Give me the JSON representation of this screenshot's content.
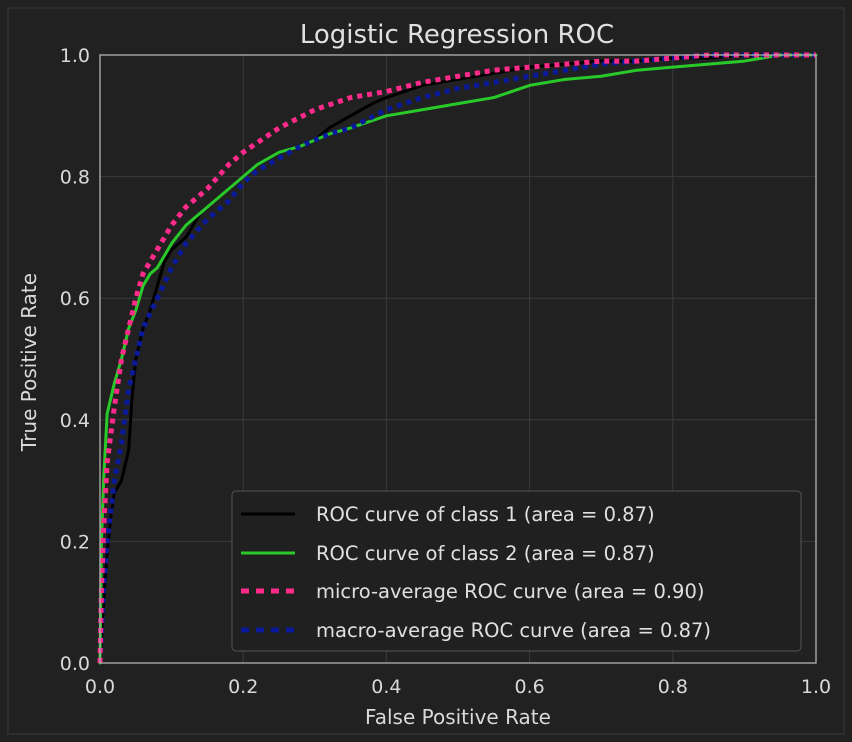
{
  "chart_data": {
    "type": "line",
    "title": "Logistic Regression ROC",
    "xlabel": "False Positive Rate",
    "ylabel": "True Positive Rate",
    "xlim": [
      0.0,
      1.0
    ],
    "ylim": [
      0.0,
      1.0
    ],
    "xticks": [
      "0.0",
      "0.2",
      "0.4",
      "0.6",
      "0.8",
      "1.0"
    ],
    "yticks": [
      "0.0",
      "0.2",
      "0.4",
      "0.6",
      "0.8",
      "1.0"
    ],
    "grid": true,
    "legend_position": "lower-right",
    "colors": {
      "background": "#212121",
      "axes_face": "#212121",
      "grid": "#3a3a3a",
      "spine": "#a8a8a8",
      "text": "#d9d9d9"
    },
    "series": [
      {
        "name": "ROC curve of class 1 (area = 0.87)",
        "color": "#000000",
        "dash": "solid",
        "x": [
          0,
          0.005,
          0.01,
          0.015,
          0.02,
          0.03,
          0.04,
          0.045,
          0.05,
          0.06,
          0.07,
          0.08,
          0.09,
          0.1,
          0.12,
          0.14,
          0.16,
          0.18,
          0.2,
          0.22,
          0.25,
          0.28,
          0.3,
          0.32,
          0.35,
          0.38,
          0.4,
          0.45,
          0.5,
          0.55,
          0.6,
          0.65,
          0.7,
          0.75,
          0.8,
          0.85,
          0.9,
          0.95,
          1.0
        ],
        "y": [
          0,
          0.1,
          0.18,
          0.24,
          0.28,
          0.3,
          0.35,
          0.44,
          0.5,
          0.55,
          0.58,
          0.62,
          0.66,
          0.68,
          0.7,
          0.74,
          0.76,
          0.78,
          0.8,
          0.82,
          0.84,
          0.85,
          0.86,
          0.88,
          0.9,
          0.92,
          0.93,
          0.95,
          0.96,
          0.97,
          0.98,
          0.985,
          0.99,
          0.99,
          0.995,
          0.995,
          1.0,
          1.0,
          1.0
        ]
      },
      {
        "name": "ROC curve of class 2 (area = 0.87)",
        "color": "#2ac92a",
        "dash": "solid",
        "x": [
          0,
          0.002,
          0.005,
          0.01,
          0.02,
          0.03,
          0.04,
          0.05,
          0.06,
          0.07,
          0.08,
          0.1,
          0.12,
          0.15,
          0.18,
          0.2,
          0.22,
          0.25,
          0.28,
          0.3,
          0.32,
          0.35,
          0.4,
          0.45,
          0.5,
          0.55,
          0.6,
          0.65,
          0.7,
          0.75,
          0.8,
          0.85,
          0.9,
          0.95,
          1.0
        ],
        "y": [
          0,
          0.2,
          0.3,
          0.41,
          0.46,
          0.5,
          0.55,
          0.58,
          0.62,
          0.64,
          0.65,
          0.69,
          0.72,
          0.75,
          0.78,
          0.8,
          0.82,
          0.84,
          0.85,
          0.86,
          0.87,
          0.88,
          0.9,
          0.91,
          0.92,
          0.93,
          0.95,
          0.96,
          0.965,
          0.975,
          0.98,
          0.985,
          0.99,
          1.0,
          1.0
        ]
      },
      {
        "name": "micro-average ROC curve (area = 0.90)",
        "color": "#ff2a8a",
        "dash": "dotted",
        "x": [
          0,
          0.002,
          0.005,
          0.01,
          0.02,
          0.03,
          0.04,
          0.05,
          0.06,
          0.08,
          0.1,
          0.12,
          0.15,
          0.18,
          0.2,
          0.25,
          0.3,
          0.35,
          0.4,
          0.45,
          0.5,
          0.55,
          0.6,
          0.65,
          0.7,
          0.75,
          0.8,
          0.85,
          0.9,
          0.95,
          1.0
        ],
        "y": [
          0,
          0.12,
          0.22,
          0.33,
          0.42,
          0.5,
          0.55,
          0.6,
          0.64,
          0.68,
          0.72,
          0.75,
          0.78,
          0.82,
          0.84,
          0.88,
          0.91,
          0.93,
          0.94,
          0.955,
          0.965,
          0.975,
          0.98,
          0.985,
          0.99,
          0.99,
          0.995,
          1.0,
          1.0,
          1.0,
          1.0
        ]
      },
      {
        "name": "macro-average ROC curve (area = 0.87)",
        "color": "#0a1a9a",
        "dash": "dotted",
        "x": [
          0,
          0.005,
          0.01,
          0.02,
          0.03,
          0.04,
          0.05,
          0.06,
          0.08,
          0.1,
          0.12,
          0.15,
          0.18,
          0.2,
          0.22,
          0.25,
          0.28,
          0.3,
          0.32,
          0.35,
          0.4,
          0.45,
          0.5,
          0.55,
          0.6,
          0.65,
          0.7,
          0.75,
          0.8,
          0.85,
          0.9,
          0.95,
          1.0
        ],
        "y": [
          0,
          0.12,
          0.2,
          0.3,
          0.36,
          0.45,
          0.5,
          0.55,
          0.6,
          0.65,
          0.69,
          0.73,
          0.76,
          0.79,
          0.81,
          0.83,
          0.85,
          0.86,
          0.87,
          0.88,
          0.91,
          0.93,
          0.945,
          0.955,
          0.965,
          0.975,
          0.985,
          0.99,
          0.995,
          1.0,
          1.0,
          1.0,
          1.0
        ]
      }
    ]
  }
}
